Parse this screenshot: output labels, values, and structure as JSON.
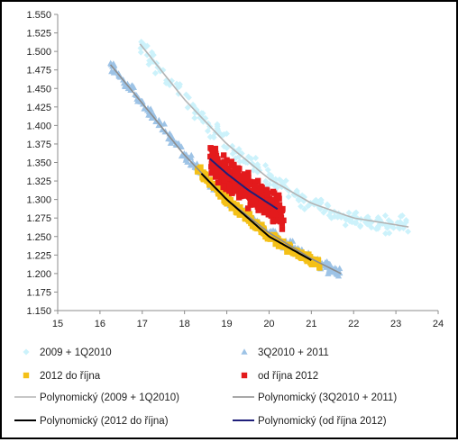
{
  "chart_data": {
    "type": "scatter",
    "title": "",
    "xlabel": "",
    "ylabel": "",
    "xlim": [
      15,
      24
    ],
    "ylim": [
      1.15,
      1.55
    ],
    "x_ticks": [
      "15",
      "16",
      "17",
      "18",
      "19",
      "20",
      "21",
      "22",
      "23",
      "24"
    ],
    "y_ticks": [
      "1.150",
      "1.175",
      "1.200",
      "1.225",
      "1.250",
      "1.275",
      "1.300",
      "1.325",
      "1.350",
      "1.375",
      "1.400",
      "1.425",
      "1.450",
      "1.475",
      "1.500",
      "1.525",
      "1.550"
    ],
    "grid": false,
    "legend_position": "bottom",
    "series": [
      {
        "name": "2009 + 1Q2010",
        "marker": "diamond",
        "color": "#ccf2fb",
        "x_range": [
          16.95,
          23.3
        ],
        "trend_points": [
          [
            16.95,
            1.51
          ],
          [
            18.0,
            1.435
          ],
          [
            19.0,
            1.375
          ],
          [
            20.0,
            1.328
          ],
          [
            21.0,
            1.295
          ],
          [
            22.0,
            1.275
          ],
          [
            23.3,
            1.263
          ]
        ]
      },
      {
        "name": "3Q2010 + 2011",
        "marker": "triangle",
        "color": "#9dc3e6",
        "x_range": [
          16.25,
          21.7
        ],
        "trend_points": [
          [
            16.25,
            1.482
          ],
          [
            17.0,
            1.43
          ],
          [
            18.0,
            1.36
          ],
          [
            19.0,
            1.3
          ],
          [
            20.0,
            1.255
          ],
          [
            21.0,
            1.22
          ],
          [
            21.7,
            1.2
          ]
        ]
      },
      {
        "name": "2012 do října",
        "marker": "square",
        "color": "#f4c017",
        "x_range": [
          18.3,
          21.2
        ],
        "trend_points": [
          [
            18.4,
            1.335
          ],
          [
            19.0,
            1.3
          ],
          [
            20.0,
            1.25
          ],
          [
            21.0,
            1.218
          ]
        ]
      },
      {
        "name": "od října 2012",
        "marker": "square",
        "color": "#e31a1c",
        "x_range": [
          18.6,
          20.35
        ],
        "trend_points": [
          [
            18.6,
            1.355
          ],
          [
            19.0,
            1.335
          ],
          [
            19.5,
            1.313
          ],
          [
            20.2,
            1.287
          ]
        ]
      }
    ],
    "trendlines": [
      {
        "name": "Polynomický (2009 + 1Q2010)",
        "series": 0,
        "color": "#b3b3b3"
      },
      {
        "name": "Polynomický (3Q2010 + 2011)",
        "series": 1,
        "color": "#8c8c8c"
      },
      {
        "name": "Polynomický (2012 do října)",
        "series": 2,
        "color": "#000000"
      },
      {
        "name": "Polynomický (od října 2012)",
        "series": 3,
        "color": "#1f1f7a"
      }
    ]
  }
}
